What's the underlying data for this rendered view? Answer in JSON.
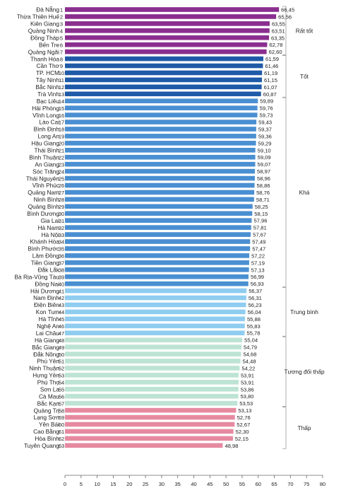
{
  "colors": {
    "Rất tốt": "#8a2f8f",
    "Tốt": "#1f5aa8",
    "Khá": "#4a8fd2",
    "Trung bình": "#8fcdf0",
    "Tương đối thấp": "#bde3d4",
    "Thấp": "#e68aa0",
    "axis": "#666666",
    "bracket": "#9a9a9a"
  },
  "chart_data": {
    "type": "bar",
    "orientation": "horizontal",
    "title": "",
    "xlabel": "",
    "ylabel": "",
    "xlim": [
      0,
      80
    ],
    "xticks": [
      0,
      5,
      10,
      15,
      20,
      25,
      30,
      35,
      40,
      45,
      50,
      55,
      60,
      65,
      70,
      75,
      80
    ],
    "grid": false,
    "rows": [
      {
        "rank": "1",
        "name": "Đà Nẵng",
        "value": 66.45,
        "label": "66,45",
        "group": "Rất tốt"
      },
      {
        "rank": "2",
        "name": "Thừa Thiên Huế",
        "value": 65.56,
        "label": "65,56",
        "group": "Rất tốt"
      },
      {
        "rank": "3",
        "name": "Kiên Giang",
        "value": 63.55,
        "label": "63,55",
        "group": "Rất tốt"
      },
      {
        "rank": "4",
        "name": "Quảng Ninh",
        "value": 63.51,
        "label": "63,51",
        "group": "Rất tốt"
      },
      {
        "rank": "5",
        "name": "Đồng Tháp",
        "value": 63.35,
        "label": "63,35",
        "group": "Rất tốt"
      },
      {
        "rank": "6",
        "name": "Bến Tre",
        "value": 62.78,
        "label": "62,78",
        "group": "Rất tốt"
      },
      {
        "rank": "7",
        "name": "Quảng Ngãi",
        "value": 62.6,
        "label": "62,60",
        "group": "Rất tốt"
      },
      {
        "rank": "8",
        "name": "Thanh Hóa",
        "value": 61.59,
        "label": "61,59",
        "group": "Tốt"
      },
      {
        "rank": "9",
        "name": "Cần Thơ",
        "value": 61.46,
        "label": "61,46",
        "group": "Tốt"
      },
      {
        "rank": "10",
        "name": "TP. HCM",
        "value": 61.19,
        "label": "61,19",
        "group": "Tốt"
      },
      {
        "rank": "11",
        "name": "Tây Ninh",
        "value": 61.15,
        "label": "61,15",
        "group": "Tốt"
      },
      {
        "rank": "12",
        "name": "Bắc Ninh",
        "value": 61.07,
        "label": "61,07",
        "group": "Tốt"
      },
      {
        "rank": "13",
        "name": "Trà Vinh",
        "value": 60.87,
        "label": "60,87",
        "group": "Tốt"
      },
      {
        "rank": "14",
        "name": "Bạc Liêu",
        "value": 59.89,
        "label": "59,89",
        "group": "Khá"
      },
      {
        "rank": "15",
        "name": "Hải Phòng",
        "value": 59.76,
        "label": "59,76",
        "group": "Khá"
      },
      {
        "rank": "16",
        "name": "Vĩnh Long",
        "value": 59.73,
        "label": "59,73",
        "group": "Khá"
      },
      {
        "rank": "17",
        "name": "Lào Cai",
        "value": 59.43,
        "label": "59,43",
        "group": "Khá"
      },
      {
        "rank": "18",
        "name": "Bình Định",
        "value": 59.37,
        "label": "59,37",
        "group": "Khá"
      },
      {
        "rank": "19",
        "name": "Long An",
        "value": 59.36,
        "label": "59,36",
        "group": "Khá"
      },
      {
        "rank": "20",
        "name": "Hậu Giang",
        "value": 59.29,
        "label": "59,29",
        "group": "Khá"
      },
      {
        "rank": "21",
        "name": "Thái Bình",
        "value": 59.1,
        "label": "59,10",
        "group": "Khá"
      },
      {
        "rank": "22",
        "name": "Bình Thuận",
        "value": 59.09,
        "label": "59,09",
        "group": "Khá"
      },
      {
        "rank": "23",
        "name": "An Giang",
        "value": 59.07,
        "label": "59,07",
        "group": "Khá"
      },
      {
        "rank": "24",
        "name": "Sóc Trăng",
        "value": 58.97,
        "label": "58,97",
        "group": "Khá"
      },
      {
        "rank": "25",
        "name": "Thái Nguyên",
        "value": 58.96,
        "label": "58,96",
        "group": "Khá"
      },
      {
        "rank": "26",
        "name": "Vĩnh Phúc",
        "value": 58.86,
        "label": "58,86",
        "group": "Khá"
      },
      {
        "rank": "27",
        "name": "Quảng Nam",
        "value": 58.76,
        "label": "58,76",
        "group": "Khá"
      },
      {
        "rank": "28",
        "name": "Ninh Bình",
        "value": 58.71,
        "label": "58,71",
        "group": "Khá"
      },
      {
        "rank": "29",
        "name": "Quảng Bình",
        "value": 58.25,
        "label": "58,25",
        "group": "Khá"
      },
      {
        "rank": "30",
        "name": "Bình Dương",
        "value": 58.15,
        "label": "58,15",
        "group": "Khá"
      },
      {
        "rank": "31",
        "name": "Gia Lai",
        "value": 57.96,
        "label": "57,96",
        "group": "Khá"
      },
      {
        "rank": "32",
        "name": "Hà Nam",
        "value": 57.81,
        "label": "57,81",
        "group": "Khá"
      },
      {
        "rank": "33",
        "name": "Hà Nội",
        "value": 57.67,
        "label": "57,67",
        "group": "Khá"
      },
      {
        "rank": "34",
        "name": "Khánh Hòa",
        "value": 57.49,
        "label": "57,49",
        "group": "Khá"
      },
      {
        "rank": "35",
        "name": "Bình Phước",
        "value": 57.47,
        "label": "57,47",
        "group": "Khá"
      },
      {
        "rank": "36",
        "name": "Lâm Đồng",
        "value": 57.22,
        "label": "57,22",
        "group": "Khá"
      },
      {
        "rank": "37",
        "name": "Tiền Giang",
        "value": 57.19,
        "label": "57,19",
        "group": "Khá"
      },
      {
        "rank": "38",
        "name": "Đắk Lắk",
        "value": 57.13,
        "label": "57,13",
        "group": "Khá"
      },
      {
        "rank": "39",
        "name": "Bà Rịa-Vũng Tàu",
        "value": 56.99,
        "label": "56,99",
        "group": "Khá"
      },
      {
        "rank": "40",
        "name": "Đồng Nai",
        "value": 56.93,
        "label": "56,93",
        "group": "Khá"
      },
      {
        "rank": "41",
        "name": "Hải Dương",
        "value": 56.37,
        "label": "56,37",
        "group": "Trung bình"
      },
      {
        "rank": "42",
        "name": "Nam Định",
        "value": 56.31,
        "label": "56,31",
        "group": "Trung bình"
      },
      {
        "rank": "43",
        "name": "Điện Biên",
        "value": 56.23,
        "label": "56,23",
        "group": "Trung bình"
      },
      {
        "rank": "44",
        "name": "Kon Tum",
        "value": 56.04,
        "label": "56,04",
        "group": "Trung bình"
      },
      {
        "rank": "45",
        "name": "Hà Tĩnh",
        "value": 55.88,
        "label": "55,88",
        "group": "Trung bình"
      },
      {
        "rank": "46",
        "name": "Nghệ An",
        "value": 55.83,
        "label": "55,83",
        "group": "Trung bình"
      },
      {
        "rank": "47",
        "name": "Lai Châu",
        "value": 55.78,
        "label": "55,78",
        "group": "Trung bình"
      },
      {
        "rank": "48",
        "name": "Hà Giang",
        "value": 55.04,
        "label": "55,04",
        "group": "Tương đối thấp"
      },
      {
        "rank": "49",
        "name": "Bắc Giang",
        "value": 54.79,
        "label": "54,79",
        "group": "Tương đối thấp"
      },
      {
        "rank": "50",
        "name": "Đắk Nông",
        "value": 54.68,
        "label": "54,68",
        "group": "Tương đối thấp"
      },
      {
        "rank": "51",
        "name": "Phú Yên",
        "value": 54.48,
        "label": "54,48",
        "group": "Tương đối thấp"
      },
      {
        "rank": "52",
        "name": "Ninh Thuận",
        "value": 54.22,
        "label": "54,22",
        "group": "Tương đối thấp"
      },
      {
        "rank": "53",
        "name": "Hưng Yên",
        "value": 53.91,
        "label": "53,91",
        "group": "Tương đối thấp"
      },
      {
        "rank": "54",
        "name": "Phú Thọ",
        "value": 53.91,
        "label": "53,91",
        "group": "Tương đối thấp"
      },
      {
        "rank": "55",
        "name": "Sơn La",
        "value": 53.86,
        "label": "53,86",
        "group": "Tương đối thấp"
      },
      {
        "rank": "56",
        "name": "Cà Mau",
        "value": 53.8,
        "label": "53,80",
        "group": "Tương đối thấp"
      },
      {
        "rank": "57",
        "name": "Bắc Kạn",
        "value": 53.53,
        "label": "53,53",
        "group": "Tương đối thấp"
      },
      {
        "rank": "58",
        "name": "Quảng Trị",
        "value": 53.13,
        "label": "53,13",
        "group": "Thấp"
      },
      {
        "rank": "59",
        "name": "Lạng Sơn",
        "value": 52.76,
        "label": "52,76",
        "group": "Thấp"
      },
      {
        "rank": "60",
        "name": "Yên Bái",
        "value": 52.67,
        "label": "52,67",
        "group": "Thấp"
      },
      {
        "rank": "61",
        "name": "Cao Bằng",
        "value": 52.3,
        "label": "52,30",
        "group": "Thấp"
      },
      {
        "rank": "62",
        "name": "Hòa Bình",
        "value": 52.15,
        "label": "52,15",
        "group": "Thấp"
      },
      {
        "rank": "63",
        "name": "Tuyên Quang",
        "value": 48.98,
        "label": "48,98",
        "group": "Thấp"
      }
    ],
    "groups": [
      {
        "name": "Rất tốt",
        "from": 1,
        "to": 7
      },
      {
        "name": "Tốt",
        "from": 8,
        "to": 13
      },
      {
        "name": "Khá",
        "from": 14,
        "to": 40
      },
      {
        "name": "Trung bình",
        "from": 41,
        "to": 47
      },
      {
        "name": "Tương đối thấp",
        "from": 48,
        "to": 57
      },
      {
        "name": "Thấp",
        "from": 58,
        "to": 63
      }
    ]
  }
}
